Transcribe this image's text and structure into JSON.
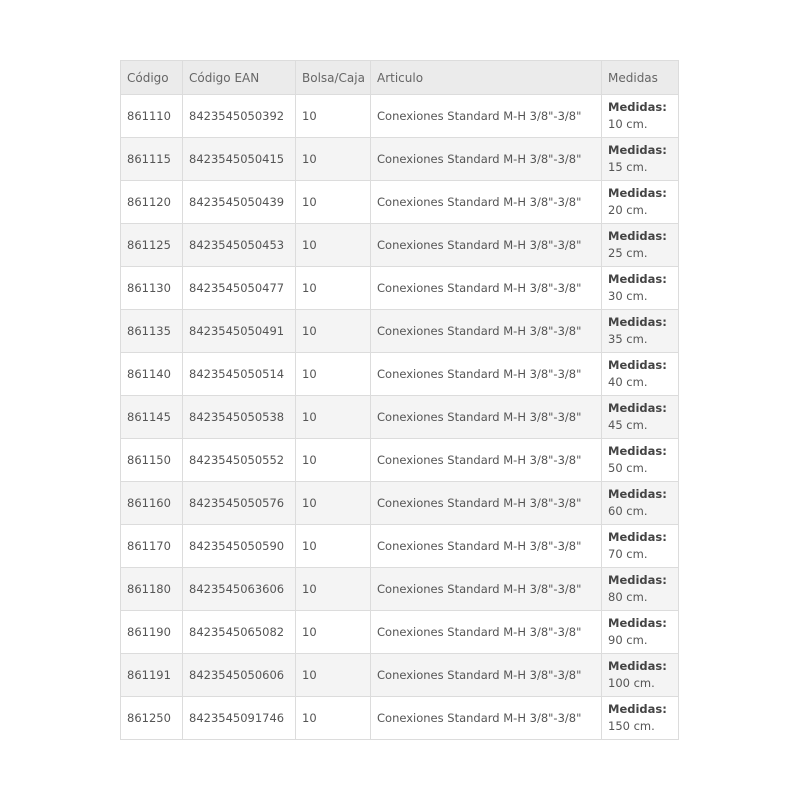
{
  "table": {
    "headers": [
      "Código",
      "Código EAN",
      "Bolsa/Caja",
      "Articulo",
      "Medidas"
    ],
    "medidas_label": "Medidas:",
    "rows": [
      {
        "codigo": "861110",
        "ean": "8423545050392",
        "bolsa": "10",
        "articulo": "Conexiones Standard M-H 3/8\"-3/8\"",
        "medida": "10 cm."
      },
      {
        "codigo": "861115",
        "ean": "8423545050415",
        "bolsa": "10",
        "articulo": "Conexiones Standard M-H 3/8\"-3/8\"",
        "medida": "15 cm."
      },
      {
        "codigo": "861120",
        "ean": "8423545050439",
        "bolsa": "10",
        "articulo": "Conexiones Standard M-H 3/8\"-3/8\"",
        "medida": "20 cm."
      },
      {
        "codigo": "861125",
        "ean": "8423545050453",
        "bolsa": "10",
        "articulo": "Conexiones Standard M-H 3/8\"-3/8\"",
        "medida": "25 cm."
      },
      {
        "codigo": "861130",
        "ean": "8423545050477",
        "bolsa": "10",
        "articulo": "Conexiones Standard M-H 3/8\"-3/8\"",
        "medida": "30 cm."
      },
      {
        "codigo": "861135",
        "ean": "8423545050491",
        "bolsa": "10",
        "articulo": "Conexiones Standard M-H 3/8\"-3/8\"",
        "medida": "35 cm."
      },
      {
        "codigo": "861140",
        "ean": "8423545050514",
        "bolsa": "10",
        "articulo": "Conexiones Standard M-H 3/8\"-3/8\"",
        "medida": "40 cm."
      },
      {
        "codigo": "861145",
        "ean": "8423545050538",
        "bolsa": "10",
        "articulo": "Conexiones Standard M-H 3/8\"-3/8\"",
        "medida": "45 cm."
      },
      {
        "codigo": "861150",
        "ean": "8423545050552",
        "bolsa": "10",
        "articulo": "Conexiones Standard M-H 3/8\"-3/8\"",
        "medida": "50 cm."
      },
      {
        "codigo": "861160",
        "ean": "8423545050576",
        "bolsa": "10",
        "articulo": "Conexiones Standard M-H 3/8\"-3/8\"",
        "medida": "60 cm."
      },
      {
        "codigo": "861170",
        "ean": "8423545050590",
        "bolsa": "10",
        "articulo": "Conexiones Standard M-H 3/8\"-3/8\"",
        "medida": "70 cm."
      },
      {
        "codigo": "861180",
        "ean": "8423545063606",
        "bolsa": "10",
        "articulo": "Conexiones Standard M-H 3/8\"-3/8\"",
        "medida": "80 cm."
      },
      {
        "codigo": "861190",
        "ean": "8423545065082",
        "bolsa": "10",
        "articulo": "Conexiones Standard M-H 3/8\"-3/8\"",
        "medida": "90 cm."
      },
      {
        "codigo": "861191",
        "ean": "8423545050606",
        "bolsa": "10",
        "articulo": "Conexiones Standard M-H 3/8\"-3/8\"",
        "medida": "100 cm."
      },
      {
        "codigo": "861250",
        "ean": "8423545091746",
        "bolsa": "10",
        "articulo": "Conexiones Standard M-H 3/8\"-3/8\"",
        "medida": "150 cm."
      }
    ]
  }
}
